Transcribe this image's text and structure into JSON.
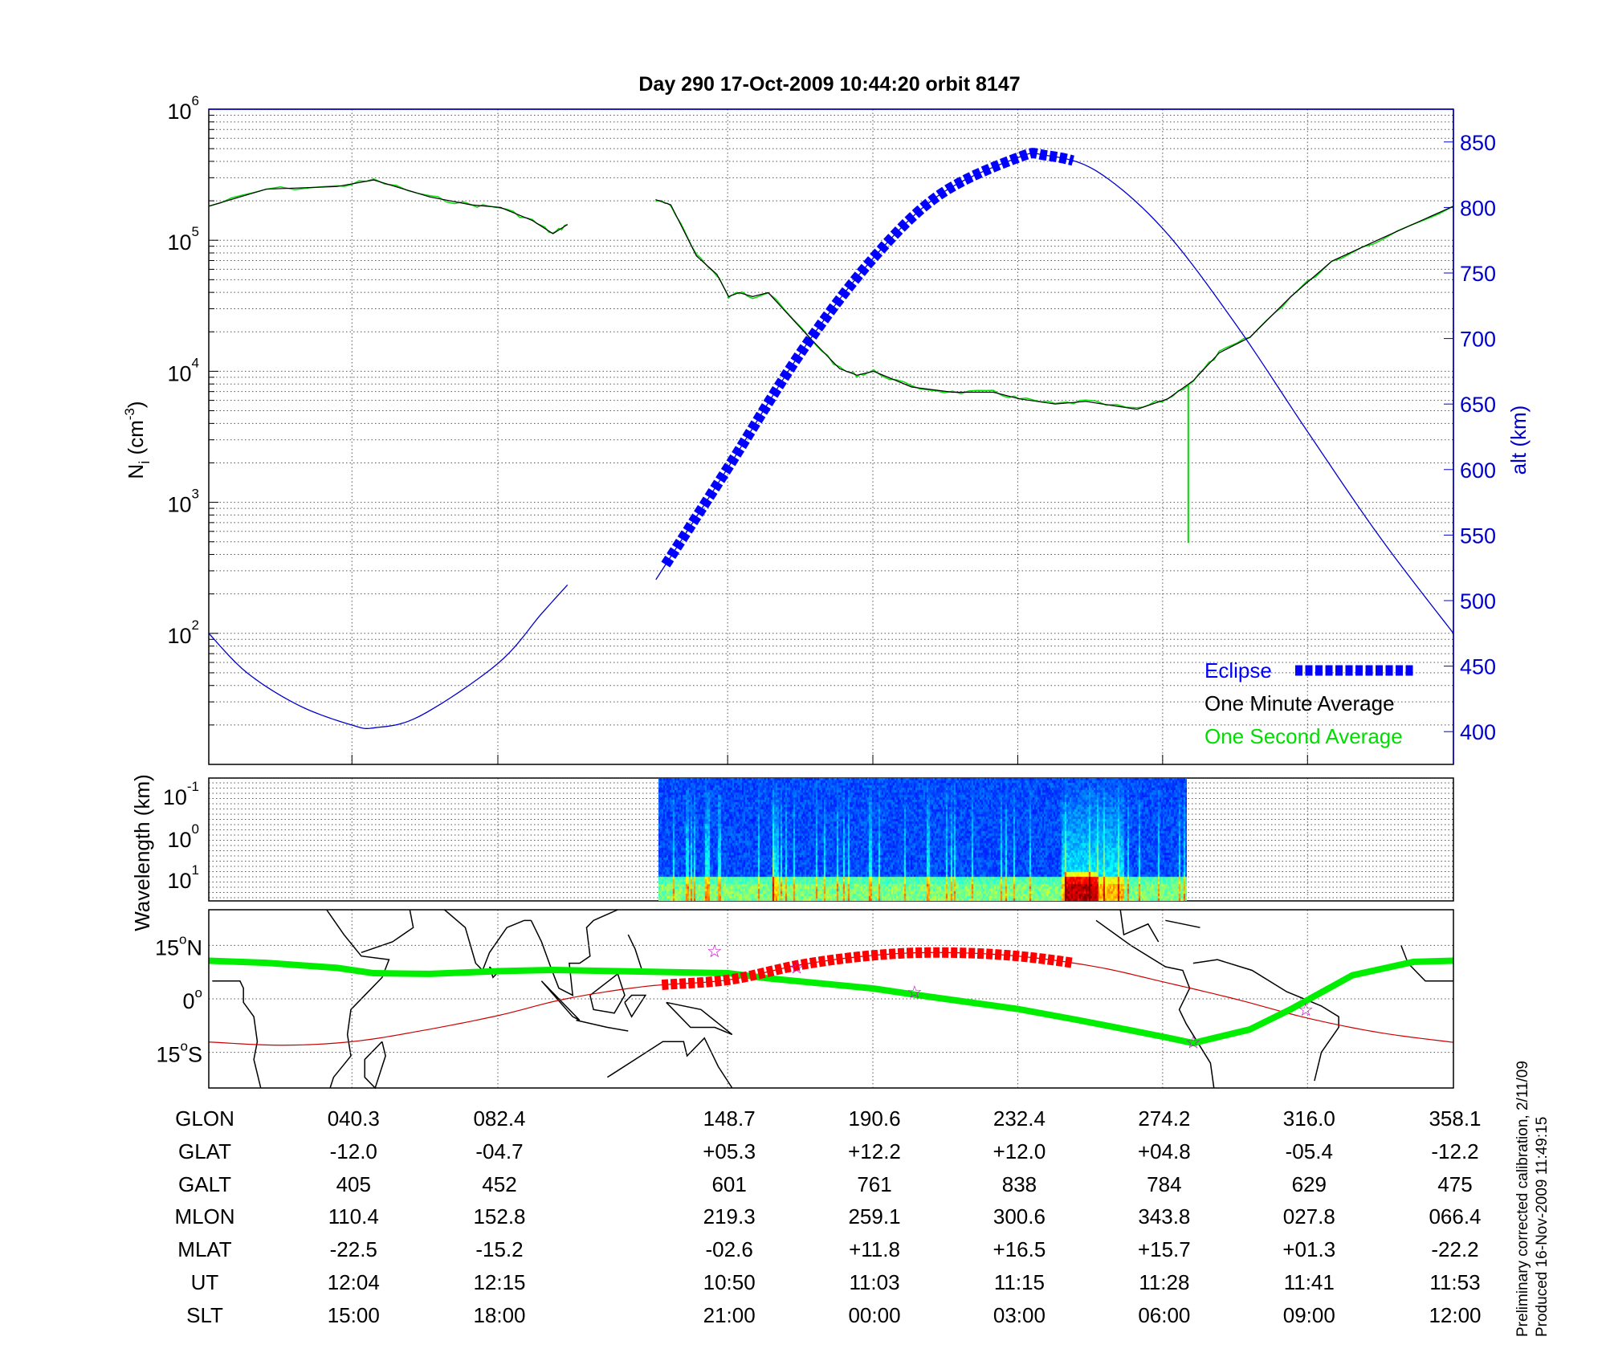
{
  "title": "Day 290  17-Oct-2009 10:44:20   orbit 8147",
  "footnote": {
    "line1": "Preliminary corrected calibration, 2/11/09",
    "line2": "Produced 16-Nov-2009 11:49:15"
  },
  "colors": {
    "alt": "#0000cc",
    "eclipse": "#0000ff",
    "minute": "#000000",
    "second": "#00dd00",
    "map_eclipse": "#ff0000",
    "orbit_track": "#cc0000",
    "dip_equator": "#00ee00",
    "stars": "#cc00cc"
  },
  "chart_data": [
    {
      "type": "line",
      "panel": "density",
      "ylabel": "N",
      "ylabel_sub": "i",
      "ylabel_units": "(cm",
      "ylabel_exp": "-3",
      "ylabel_close": ")",
      "yscale": "log",
      "ylim": [
        10,
        1000000
      ],
      "yticks": [
        {
          "base": "10",
          "exp": "2",
          "value": 100
        },
        {
          "base": "10",
          "exp": "3",
          "value": 1000
        },
        {
          "base": "10",
          "exp": "4",
          "value": 10000
        },
        {
          "base": "10",
          "exp": "5",
          "value": 100000
        },
        {
          "base": "10",
          "exp": "6",
          "value": 1000000
        }
      ],
      "y2label": "alt (km)",
      "y2lim": [
        375,
        875
      ],
      "y2ticks": [
        "400",
        "450",
        "500",
        "550",
        "600",
        "650",
        "700",
        "750",
        "800",
        "850"
      ],
      "xlim": [
        -1,
        358.1
      ],
      "grid": true,
      "legend_position": "bottom-right",
      "legend": [
        "Eclipse",
        "One Minute Average",
        "One Second Average"
      ],
      "series": [
        {
          "name": "One Minute Average",
          "segments": [
            [
              [
                -1,
                5.26
              ],
              [
                15.6,
                5.39
              ],
              [
                36,
                5.41
              ],
              [
                46.6,
                5.46
              ],
              [
                62.8,
                5.33
              ],
              [
                74.7,
                5.27
              ],
              [
                83.2,
                5.25
              ],
              [
                92.4,
                5.15
              ],
              [
                98.3,
                5.05
              ],
              [
                102.5,
                5.12
              ]
            ],
            [
              [
                127.9,
                5.31
              ],
              [
                132.3,
                5.27
              ],
              [
                139.7,
                4.88
              ],
              [
                145.6,
                4.74
              ],
              [
                149,
                4.57
              ],
              [
                152,
                4.6
              ],
              [
                155.9,
                4.57
              ],
              [
                160.4,
                4.6
              ],
              [
                172.2,
                4.26
              ],
              [
                181,
                4.02
              ],
              [
                186,
                3.97
              ],
              [
                190.8,
                4.0
              ],
              [
                201.8,
                3.88
              ],
              [
                213.6,
                3.84
              ],
              [
                225.4,
                3.84
              ],
              [
                232.8,
                3.79
              ],
              [
                243.2,
                3.75
              ],
              [
                252,
                3.77
              ],
              [
                266.8,
                3.71
              ],
              [
                275.7,
                3.79
              ],
              [
                283.1,
                3.93
              ],
              [
                290.5,
                4.14
              ],
              [
                299.4,
                4.26
              ],
              [
                311.2,
                4.57
              ],
              [
                323,
                4.84
              ],
              [
                337.8,
                5.02
              ],
              [
                358.1,
                5.26
              ]
            ]
          ]
        },
        {
          "name": "One Second Average",
          "spike": {
            "glon": 281.6,
            "from": 3.9,
            "to": 2.69
          }
        },
        {
          "name": "alt",
          "segments": [
            [
              [
                -1,
                475
              ],
              [
                10,
                445
              ],
              [
                25,
                420
              ],
              [
                40.3,
                405
              ],
              [
                47,
                403
              ],
              [
                60,
                412
              ],
              [
                82.4,
                452
              ],
              [
                95,
                490
              ],
              [
                102.5,
                512
              ]
            ],
            [
              [
                128,
                516
              ],
              [
                148.7,
                601
              ],
              [
                170,
                690
              ],
              [
                190.6,
                761
              ],
              [
                210,
                810
              ],
              [
                232.4,
                838
              ],
              [
                240,
                840
              ],
              [
                255,
                828
              ],
              [
                274.2,
                784
              ],
              [
                295,
                712
              ],
              [
                316,
                629
              ],
              [
                337,
                548
              ],
              [
                358.1,
                475
              ]
            ]
          ]
        },
        {
          "name": "Eclipse",
          "glon_range": [
            129.4,
            248.5
          ]
        }
      ]
    },
    {
      "type": "heatmap",
      "panel": "spectrogram",
      "ylabel": "Wavelength (km)",
      "yticks": [
        {
          "base": "10",
          "exp": "-1"
        },
        {
          "base": "10",
          "exp": "0"
        },
        {
          "base": "10",
          "exp": "1"
        }
      ],
      "data_glon_range": [
        129.4,
        281.5
      ],
      "colormap": "jet"
    },
    {
      "type": "map",
      "panel": "ground-track",
      "ylim": [
        -25,
        25
      ],
      "yticks": [
        {
          "deg": "15",
          "hemi": "N",
          "value": 15
        },
        {
          "deg": "0",
          "hemi": "",
          "value": 0
        },
        {
          "deg": "15",
          "hemi": "S",
          "value": -15
        }
      ],
      "orbit_track": [
        [
          -1,
          -12.1
        ],
        [
          20,
          -13
        ],
        [
          40.3,
          -12.0
        ],
        [
          60,
          -9
        ],
        [
          82.4,
          -4.7
        ],
        [
          102,
          0
        ],
        [
          125,
          3.5
        ],
        [
          148.7,
          5.3
        ],
        [
          170,
          9.6
        ],
        [
          190.6,
          12.2
        ],
        [
          210,
          13
        ],
        [
          232.4,
          12.0
        ],
        [
          255,
          9
        ],
        [
          274.2,
          4.8
        ],
        [
          295,
          0
        ],
        [
          316,
          -5.4
        ],
        [
          337,
          -9.5
        ],
        [
          358.1,
          -12.2
        ]
      ],
      "eclipse_range": [
        129.4,
        248.5
      ],
      "dip_equator": [
        [
          -1,
          10.7
        ],
        [
          15.6,
          10.1
        ],
        [
          36,
          8.7
        ],
        [
          46.6,
          7.2
        ],
        [
          62.8,
          7.0
        ],
        [
          83.2,
          7.8
        ],
        [
          98.3,
          8.1
        ],
        [
          116,
          7.8
        ],
        [
          149,
          7.2
        ],
        [
          160,
          5.8
        ],
        [
          190.8,
          2.9
        ],
        [
          204.7,
          0.9
        ],
        [
          232.8,
          -2.9
        ],
        [
          249,
          -5.8
        ],
        [
          263.8,
          -8.6
        ],
        [
          274.7,
          -10.7
        ],
        [
          283,
          -12.4
        ],
        [
          299.3,
          -8.6
        ],
        [
          311.2,
          -2.9
        ],
        [
          328.9,
          6.6
        ],
        [
          346.7,
          10.4
        ],
        [
          358.1,
          10.7
        ]
      ],
      "stars": [
        [
          144.9,
          13.5
        ],
        [
          168.6,
          8.9
        ],
        [
          202.6,
          2.0
        ],
        [
          283,
          -12.1
        ],
        [
          315.5,
          -2.9
        ]
      ],
      "coastlines": [
        [
          [
            33,
            25
          ],
          [
            38,
            18
          ],
          [
            43,
            12
          ],
          [
            51,
            11
          ],
          [
            49,
            6
          ],
          [
            44,
            1
          ],
          [
            40,
            -3
          ],
          [
            39,
            -10
          ],
          [
            40,
            -16
          ],
          [
            35,
            -22
          ],
          [
            34,
            -25
          ]
        ],
        [
          [
            43,
            13
          ],
          [
            52,
            16
          ],
          [
            58,
            20
          ],
          [
            57,
            25
          ]
        ],
        [
          [
            49,
            -12
          ],
          [
            50,
            -16
          ],
          [
            47,
            -25
          ],
          [
            44,
            -22
          ],
          [
            44,
            -17
          ],
          [
            49,
            -12
          ]
        ],
        [
          [
            0,
            5
          ],
          [
            8,
            5
          ],
          [
            9,
            3
          ],
          [
            9,
            -1
          ],
          [
            12,
            -5
          ],
          [
            13,
            -12
          ],
          [
            12,
            -17
          ],
          [
            14,
            -25
          ]
        ],
        [
          [
            67,
            25
          ],
          [
            73,
            20
          ],
          [
            76,
            10
          ],
          [
            78,
            8
          ],
          [
            80,
            13
          ],
          [
            85,
            20
          ],
          [
            90,
            22
          ],
          [
            92,
            22
          ]
        ],
        [
          [
            80,
            9
          ],
          [
            82,
            7
          ],
          [
            81,
            6
          ],
          [
            80,
            9
          ]
        ],
        [
          [
            92,
            22
          ],
          [
            95,
            16
          ],
          [
            98,
            8
          ],
          [
            100,
            3
          ],
          [
            104,
            1
          ],
          [
            103,
            10
          ],
          [
            106,
            10
          ],
          [
            109,
            12
          ],
          [
            108,
            20
          ],
          [
            110,
            22
          ],
          [
            117,
            25
          ]
        ],
        [
          [
            95,
            5
          ],
          [
            98,
            2
          ],
          [
            106,
            -6
          ],
          [
            104,
            -5
          ],
          [
            95,
            5
          ]
        ],
        [
          [
            105,
            -6
          ],
          [
            114,
            -8
          ],
          [
            120,
            -9
          ]
        ],
        [
          [
            109,
            1
          ],
          [
            117,
            7
          ],
          [
            119,
            1
          ],
          [
            116,
            -4
          ],
          [
            110,
            -3
          ],
          [
            109,
            1
          ]
        ],
        [
          [
            120,
            18
          ],
          [
            122,
            14
          ],
          [
            124,
            8
          ],
          [
            126,
            7
          ]
        ],
        [
          [
            119,
            -1
          ],
          [
            121,
            1
          ],
          [
            125,
            1
          ],
          [
            121,
            -5
          ],
          [
            119,
            -1
          ]
        ],
        [
          [
            131,
            -1
          ],
          [
            141,
            -3
          ],
          [
            150,
            -10
          ],
          [
            145,
            -8
          ],
          [
            138,
            -8
          ],
          [
            131,
            -1
          ]
        ],
        [
          [
            114,
            -22
          ],
          [
            122,
            -17
          ],
          [
            130,
            -12
          ],
          [
            136,
            -12
          ],
          [
            137,
            -16
          ],
          [
            142,
            -11
          ],
          [
            146,
            -19
          ],
          [
            150,
            -25
          ]
        ],
        [
          [
            255,
            22
          ],
          [
            265,
            15
          ],
          [
            275,
            9
          ],
          [
            280,
            8
          ],
          [
            282,
            3
          ],
          [
            279,
            -3
          ],
          [
            281,
            -7
          ],
          [
            288,
            -18
          ],
          [
            289,
            -25
          ]
        ],
        [
          [
            262,
            25
          ],
          [
            263,
            18
          ],
          [
            270,
            21
          ],
          [
            273,
            16
          ]
        ],
        [
          [
            275,
            22
          ],
          [
            285,
            20
          ]
        ],
        [
          [
            283,
            10
          ],
          [
            290,
            11
          ],
          [
            300,
            8
          ],
          [
            310,
            2
          ],
          [
            320,
            -2
          ],
          [
            325,
            -5
          ],
          [
            325,
            -8
          ],
          [
            320,
            -15
          ],
          [
            318,
            -23
          ]
        ],
        [
          [
            343,
            15
          ],
          [
            345,
            10
          ],
          [
            350,
            5
          ],
          [
            358.1,
            5
          ]
        ]
      ]
    }
  ],
  "table": {
    "rows": [
      {
        "label": "GLON",
        "values": [
          "040.3",
          "082.4",
          "148.7",
          "190.6",
          "232.4",
          "274.2",
          "316.0",
          "358.1"
        ]
      },
      {
        "label": "GLAT",
        "values": [
          "-12.0",
          "-04.7",
          "+05.3",
          "+12.2",
          "+12.0",
          "+04.8",
          "-05.4",
          "-12.2"
        ]
      },
      {
        "label": "GALT",
        "values": [
          "405",
          "452",
          "601",
          "761",
          "838",
          "784",
          "629",
          "475"
        ]
      },
      {
        "label": "MLON",
        "values": [
          "110.4",
          "152.8",
          "219.3",
          "259.1",
          "300.6",
          "343.8",
          "027.8",
          "066.4"
        ]
      },
      {
        "label": "MLAT",
        "values": [
          "-22.5",
          "-15.2",
          "-02.6",
          "+11.8",
          "+16.5",
          "+15.7",
          "+01.3",
          "-22.2"
        ]
      },
      {
        "label": "UT",
        "values": [
          "12:04",
          "12:15",
          "10:50",
          "11:03",
          "11:15",
          "11:28",
          "11:41",
          "11:53"
        ]
      },
      {
        "label": "SLT",
        "values": [
          "15:00",
          "18:00",
          "21:00",
          "00:00",
          "03:00",
          "06:00",
          "09:00",
          "12:00"
        ]
      }
    ]
  }
}
